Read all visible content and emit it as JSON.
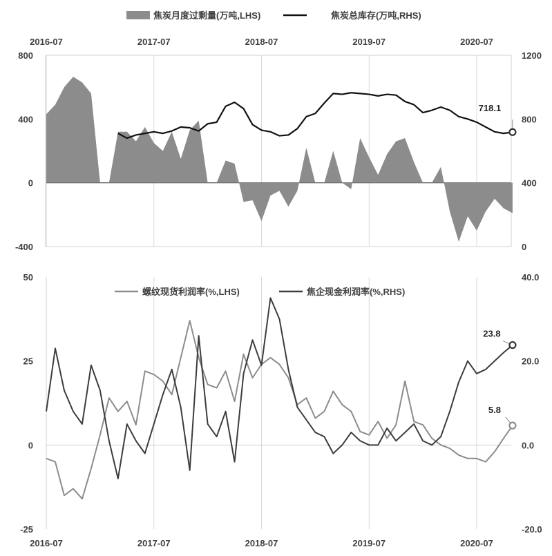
{
  "chart_data": [
    {
      "type": "area+line",
      "legend_position": "top",
      "series": [
        {
          "name": "焦炭月度过剩量(万吨,LHS)",
          "kind": "area",
          "axis": "left",
          "color": "#8c8c8c",
          "points": [
            [
              "2016-07",
              430
            ],
            [
              "2016-08",
              490
            ],
            [
              "2016-09",
              600
            ],
            [
              "2016-10",
              665
            ],
            [
              "2016-11",
              630
            ],
            [
              "2016-12",
              560
            ],
            [
              "2017-01",
              0
            ],
            [
              "2017-02",
              0
            ],
            [
              "2017-03",
              320
            ],
            [
              "2017-04",
              320
            ],
            [
              "2017-05",
              260
            ],
            [
              "2017-06",
              350
            ],
            [
              "2017-07",
              250
            ],
            [
              "2017-08",
              200
            ],
            [
              "2017-09",
              320
            ],
            [
              "2017-10",
              150
            ],
            [
              "2017-11",
              330
            ],
            [
              "2017-12",
              390
            ],
            [
              "2018-01",
              0
            ],
            [
              "2018-02",
              0
            ],
            [
              "2018-03",
              140
            ],
            [
              "2018-04",
              120
            ],
            [
              "2018-05",
              -120
            ],
            [
              "2018-06",
              -110
            ],
            [
              "2018-07",
              -240
            ],
            [
              "2018-08",
              -80
            ],
            [
              "2018-09",
              -50
            ],
            [
              "2018-10",
              -150
            ],
            [
              "2018-11",
              -50
            ],
            [
              "2018-12",
              220
            ],
            [
              "2019-01",
              0
            ],
            [
              "2019-02",
              0
            ],
            [
              "2019-03",
              200
            ],
            [
              "2019-04",
              0
            ],
            [
              "2019-05",
              -40
            ],
            [
              "2019-06",
              280
            ],
            [
              "2019-07",
              160
            ],
            [
              "2019-08",
              50
            ],
            [
              "2019-09",
              180
            ],
            [
              "2019-10",
              260
            ],
            [
              "2019-11",
              280
            ],
            [
              "2019-12",
              130
            ],
            [
              "2020-01",
              0
            ],
            [
              "2020-02",
              0
            ],
            [
              "2020-03",
              100
            ],
            [
              "2020-04",
              -180
            ],
            [
              "2020-05",
              -370
            ],
            [
              "2020-06",
              -210
            ],
            [
              "2020-07",
              -300
            ],
            [
              "2020-08",
              -180
            ],
            [
              "2020-09",
              -100
            ],
            [
              "2020-10",
              -160
            ],
            [
              "2020-11",
              -190
            ]
          ]
        },
        {
          "name": "焦炭总库存(万吨,RHS)",
          "kind": "line",
          "axis": "right",
          "color": "#111111",
          "points": [
            [
              "2017-03",
              710
            ],
            [
              "2017-04",
              680
            ],
            [
              "2017-05",
              700
            ],
            [
              "2017-06",
              710
            ],
            [
              "2017-07",
              720
            ],
            [
              "2017-08",
              710
            ],
            [
              "2017-09",
              725
            ],
            [
              "2017-10",
              750
            ],
            [
              "2017-11",
              745
            ],
            [
              "2017-12",
              725
            ],
            [
              "2018-01",
              770
            ],
            [
              "2018-02",
              780
            ],
            [
              "2018-03",
              880
            ],
            [
              "2018-04",
              905
            ],
            [
              "2018-05",
              865
            ],
            [
              "2018-06",
              765
            ],
            [
              "2018-07",
              730
            ],
            [
              "2018-08",
              720
            ],
            [
              "2018-09",
              695
            ],
            [
              "2018-10",
              700
            ],
            [
              "2018-11",
              740
            ],
            [
              "2018-12",
              815
            ],
            [
              "2019-01",
              835
            ],
            [
              "2019-02",
              900
            ],
            [
              "2019-03",
              960
            ],
            [
              "2019-04",
              955
            ],
            [
              "2019-05",
              965
            ],
            [
              "2019-06",
              960
            ],
            [
              "2019-07",
              955
            ],
            [
              "2019-08",
              945
            ],
            [
              "2019-09",
              955
            ],
            [
              "2019-10",
              950
            ],
            [
              "2019-11",
              910
            ],
            [
              "2019-12",
              890
            ],
            [
              "2020-01",
              840
            ],
            [
              "2020-02",
              855
            ],
            [
              "2020-03",
              875
            ],
            [
              "2020-04",
              855
            ],
            [
              "2020-05",
              815
            ],
            [
              "2020-06",
              800
            ],
            [
              "2020-07",
              780
            ],
            [
              "2020-08",
              750
            ],
            [
              "2020-09",
              720
            ],
            [
              "2020-10",
              710
            ],
            [
              "2020-11",
              718.1
            ]
          ]
        }
      ],
      "x_ticks": [
        "2016-07",
        "2017-07",
        "2018-07",
        "2019-07",
        "2020-07"
      ],
      "y_left": {
        "ticks": [
          "-400",
          "0",
          "400",
          "800"
        ],
        "lim": [
          -400,
          800
        ]
      },
      "y_right": {
        "ticks": [
          "0",
          "400",
          "800",
          "1200"
        ],
        "lim": [
          0,
          1200
        ]
      },
      "annotations": [
        {
          "series": 1,
          "text": "718.1"
        }
      ]
    },
    {
      "type": "line",
      "legend_position": "top",
      "series": [
        {
          "name": "螺纹现货利润率(%,LHS)",
          "axis": "left",
          "color": "#8c8c8c",
          "points": [
            [
              "2016-07",
              -4
            ],
            [
              "2016-08",
              -5
            ],
            [
              "2016-09",
              -15
            ],
            [
              "2016-10",
              -13
            ],
            [
              "2016-11",
              -16
            ],
            [
              "2016-12",
              -7
            ],
            [
              "2017-01",
              3
            ],
            [
              "2017-02",
              14
            ],
            [
              "2017-03",
              10
            ],
            [
              "2017-04",
              13
            ],
            [
              "2017-05",
              6
            ],
            [
              "2017-06",
              22
            ],
            [
              "2017-07",
              21
            ],
            [
              "2017-08",
              19
            ],
            [
              "2017-09",
              15
            ],
            [
              "2017-10",
              26
            ],
            [
              "2017-11",
              37
            ],
            [
              "2017-12",
              26
            ],
            [
              "2018-01",
              18
            ],
            [
              "2018-02",
              17
            ],
            [
              "2018-03",
              22
            ],
            [
              "2018-04",
              13
            ],
            [
              "2018-05",
              27
            ],
            [
              "2018-06",
              20
            ],
            [
              "2018-07",
              24
            ],
            [
              "2018-08",
              26
            ],
            [
              "2018-09",
              24
            ],
            [
              "2018-10",
              20
            ],
            [
              "2018-11",
              12
            ],
            [
              "2018-12",
              14
            ],
            [
              "2019-01",
              8
            ],
            [
              "2019-02",
              10
            ],
            [
              "2019-03",
              16
            ],
            [
              "2019-04",
              12
            ],
            [
              "2019-05",
              10
            ],
            [
              "2019-06",
              4
            ],
            [
              "2019-07",
              3
            ],
            [
              "2019-08",
              7
            ],
            [
              "2019-09",
              2
            ],
            [
              "2019-10",
              6
            ],
            [
              "2019-11",
              19
            ],
            [
              "2019-12",
              7
            ],
            [
              "2020-01",
              6
            ],
            [
              "2020-02",
              2
            ],
            [
              "2020-03",
              0
            ],
            [
              "2020-04",
              -1
            ],
            [
              "2020-05",
              -3
            ],
            [
              "2020-06",
              -4
            ],
            [
              "2020-07",
              -4
            ],
            [
              "2020-08",
              -5
            ],
            [
              "2020-09",
              -2
            ],
            [
              "2020-10",
              2
            ],
            [
              "2020-11",
              5.8
            ]
          ]
        },
        {
          "name": "焦企现金利润率(%,RHS)",
          "axis": "right",
          "color": "#3c3c3c",
          "points": [
            [
              "2016-07",
              8
            ],
            [
              "2016-08",
              23
            ],
            [
              "2016-09",
              13
            ],
            [
              "2016-10",
              8
            ],
            [
              "2016-11",
              5
            ],
            [
              "2016-12",
              19
            ],
            [
              "2017-01",
              13
            ],
            [
              "2017-02",
              1
            ],
            [
              "2017-03",
              -8
            ],
            [
              "2017-04",
              5
            ],
            [
              "2017-05",
              1
            ],
            [
              "2017-06",
              -2
            ],
            [
              "2017-07",
              5
            ],
            [
              "2017-08",
              12
            ],
            [
              "2017-09",
              18
            ],
            [
              "2017-10",
              9
            ],
            [
              "2017-11",
              -6
            ],
            [
              "2017-12",
              26
            ],
            [
              "2018-01",
              5
            ],
            [
              "2018-02",
              2
            ],
            [
              "2018-03",
              8
            ],
            [
              "2018-04",
              -4
            ],
            [
              "2018-05",
              17
            ],
            [
              "2018-06",
              25
            ],
            [
              "2018-07",
              19
            ],
            [
              "2018-08",
              35
            ],
            [
              "2018-09",
              30
            ],
            [
              "2018-10",
              18
            ],
            [
              "2018-11",
              9
            ],
            [
              "2018-12",
              6
            ],
            [
              "2019-01",
              3
            ],
            [
              "2019-02",
              2
            ],
            [
              "2019-03",
              -2
            ],
            [
              "2019-04",
              0
            ],
            [
              "2019-05",
              3
            ],
            [
              "2019-06",
              1
            ],
            [
              "2019-07",
              0
            ],
            [
              "2019-08",
              0
            ],
            [
              "2019-09",
              4
            ],
            [
              "2019-10",
              1
            ],
            [
              "2019-11",
              3
            ],
            [
              "2019-12",
              5
            ],
            [
              "2020-01",
              1
            ],
            [
              "2020-02",
              0
            ],
            [
              "2020-03",
              2
            ],
            [
              "2020-04",
              8
            ],
            [
              "2020-05",
              15
            ],
            [
              "2020-06",
              20
            ],
            [
              "2020-07",
              17
            ],
            [
              "2020-08",
              18
            ],
            [
              "2020-09",
              20
            ],
            [
              "2020-10",
              22
            ],
            [
              "2020-11",
              23.8
            ]
          ]
        }
      ],
      "x_ticks": [
        "2016-07",
        "2017-07",
        "2018-07",
        "2019-07",
        "2020-07"
      ],
      "y_left": {
        "ticks": [
          "-25",
          "0",
          "25",
          "50"
        ],
        "lim": [
          -25,
          50
        ]
      },
      "y_right": {
        "ticks": [
          "-20.0",
          "0.0",
          "20.0",
          "40.0"
        ],
        "lim": [
          -20,
          40
        ]
      },
      "annotations": [
        {
          "series": 1,
          "text": "23.8"
        },
        {
          "series": 0,
          "text": "5.8"
        }
      ]
    }
  ]
}
